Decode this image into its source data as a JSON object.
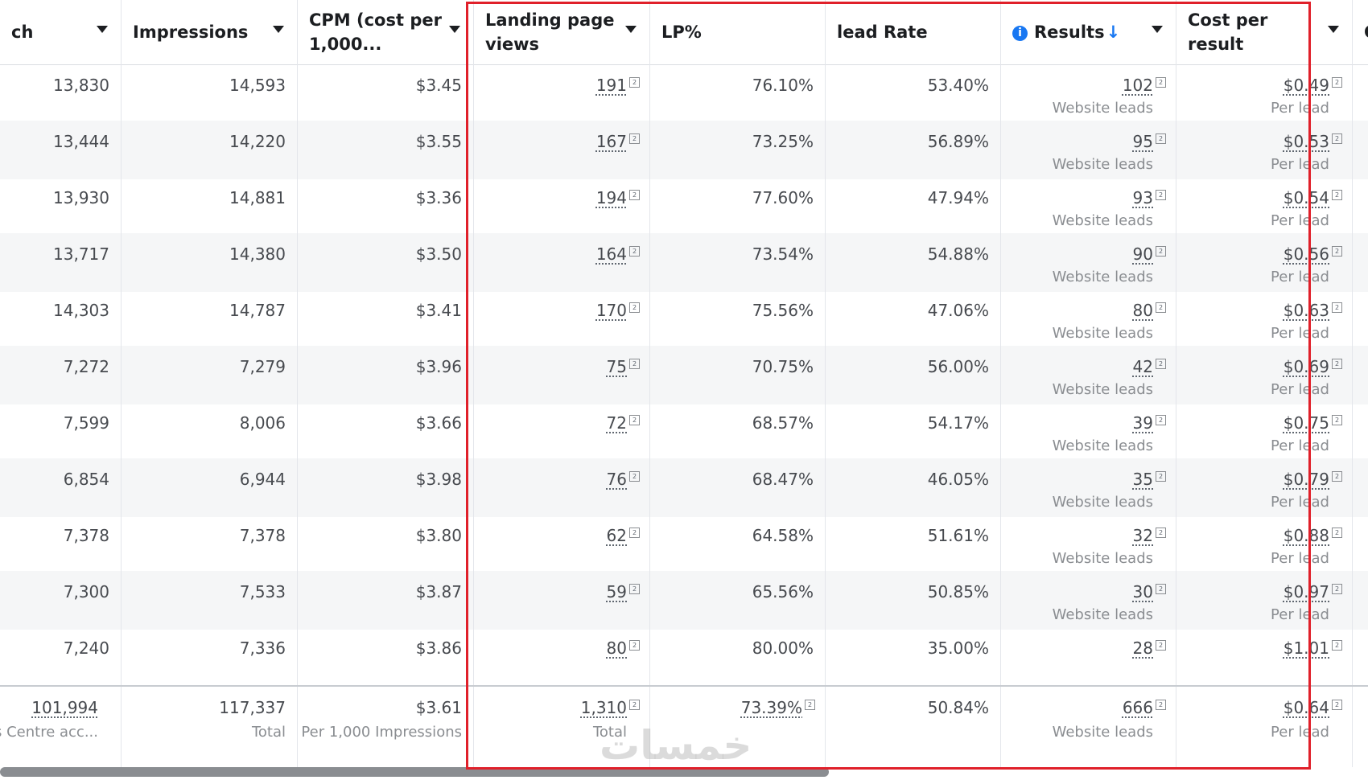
{
  "columns": [
    {
      "key": "reach",
      "lines": [
        "ch",
        ""
      ],
      "caret": true
    },
    {
      "key": "impressions",
      "lines": [
        "Impressions",
        ""
      ],
      "caret": true
    },
    {
      "key": "cpm",
      "lines": [
        "CPM (cost per",
        "1,000..."
      ],
      "caret": true
    },
    {
      "key": "lpv",
      "lines": [
        "Landing page",
        "views"
      ],
      "caret": true
    },
    {
      "key": "lp_pct",
      "lines": [
        "LP%",
        ""
      ],
      "caret": false
    },
    {
      "key": "lead_rate",
      "lines": [
        "lead Rate",
        ""
      ],
      "caret": false
    },
    {
      "key": "results",
      "lines": [
        "Results",
        ""
      ],
      "caret": true,
      "info_icon": "info-icon",
      "sort_icon": "↓"
    },
    {
      "key": "cost_per_result",
      "lines": [
        "Cost per",
        "result"
      ],
      "caret": true
    },
    {
      "key": "clicks",
      "lines": [
        "Clic",
        ""
      ],
      "caret": false
    }
  ],
  "rows": [
    {
      "reach": "13,830",
      "impressions": "14,593",
      "cpm": "$3.45",
      "lpv": "191",
      "lp_pct": "76.10%",
      "lead_rate": "53.40%",
      "results": "102",
      "results_sub": "Website leads",
      "cost_per_result": "$0.49",
      "cost_sub": "Per lead"
    },
    {
      "reach": "13,444",
      "impressions": "14,220",
      "cpm": "$3.55",
      "lpv": "167",
      "lp_pct": "73.25%",
      "lead_rate": "56.89%",
      "results": "95",
      "results_sub": "Website leads",
      "cost_per_result": "$0.53",
      "cost_sub": "Per lead"
    },
    {
      "reach": "13,930",
      "impressions": "14,881",
      "cpm": "$3.36",
      "lpv": "194",
      "lp_pct": "77.60%",
      "lead_rate": "47.94%",
      "results": "93",
      "results_sub": "Website leads",
      "cost_per_result": "$0.54",
      "cost_sub": "Per lead"
    },
    {
      "reach": "13,717",
      "impressions": "14,380",
      "cpm": "$3.50",
      "lpv": "164",
      "lp_pct": "73.54%",
      "lead_rate": "54.88%",
      "results": "90",
      "results_sub": "Website leads",
      "cost_per_result": "$0.56",
      "cost_sub": "Per lead"
    },
    {
      "reach": "14,303",
      "impressions": "14,787",
      "cpm": "$3.41",
      "lpv": "170",
      "lp_pct": "75.56%",
      "lead_rate": "47.06%",
      "results": "80",
      "results_sub": "Website leads",
      "cost_per_result": "$0.63",
      "cost_sub": "Per lead"
    },
    {
      "reach": "7,272",
      "impressions": "7,279",
      "cpm": "$3.96",
      "lpv": "75",
      "lp_pct": "70.75%",
      "lead_rate": "56.00%",
      "results": "42",
      "results_sub": "Website leads",
      "cost_per_result": "$0.69",
      "cost_sub": "Per lead"
    },
    {
      "reach": "7,599",
      "impressions": "8,006",
      "cpm": "$3.66",
      "lpv": "72",
      "lp_pct": "68.57%",
      "lead_rate": "54.17%",
      "results": "39",
      "results_sub": "Website leads",
      "cost_per_result": "$0.75",
      "cost_sub": "Per lead"
    },
    {
      "reach": "6,854",
      "impressions": "6,944",
      "cpm": "$3.98",
      "lpv": "76",
      "lp_pct": "68.47%",
      "lead_rate": "46.05%",
      "results": "35",
      "results_sub": "Website leads",
      "cost_per_result": "$0.79",
      "cost_sub": "Per lead"
    },
    {
      "reach": "7,378",
      "impressions": "7,378",
      "cpm": "$3.80",
      "lpv": "62",
      "lp_pct": "64.58%",
      "lead_rate": "51.61%",
      "results": "32",
      "results_sub": "Website leads",
      "cost_per_result": "$0.88",
      "cost_sub": "Per lead"
    },
    {
      "reach": "7,300",
      "impressions": "7,533",
      "cpm": "$3.87",
      "lpv": "59",
      "lp_pct": "65.56%",
      "lead_rate": "50.85%",
      "results": "30",
      "results_sub": "Website leads",
      "cost_per_result": "$0.97",
      "cost_sub": "Per lead"
    },
    {
      "reach": "7,240",
      "impressions": "7,336",
      "cpm": "$3.86",
      "lpv": "80",
      "lp_pct": "80.00%",
      "lead_rate": "35.00%",
      "results": "28",
      "results_sub": "",
      "cost_per_result": "$1.01",
      "cost_sub": ""
    }
  ],
  "totals": {
    "reach": "101,994",
    "reach_sub": "unts Centre acc...",
    "impressions": "117,337",
    "impressions_sub": "Total",
    "cpm": "$3.61",
    "cpm_sub": "Per 1,000 Impressions",
    "lpv": "1,310",
    "lpv_sub": "Total",
    "lp_pct": "73.39%",
    "lp_pct_sub": "",
    "lead_rate": "50.84%",
    "lead_rate_sub": "",
    "results": "666",
    "results_sub": "Website leads",
    "cost_per_result": "$0.64",
    "cost_sub": "Per lead"
  },
  "footnote_mark": "[2]",
  "watermark": "خمسات",
  "colors": {
    "highlight": "#e0202a",
    "accent": "#1877f2",
    "alt_row": "#f5f6f7"
  }
}
